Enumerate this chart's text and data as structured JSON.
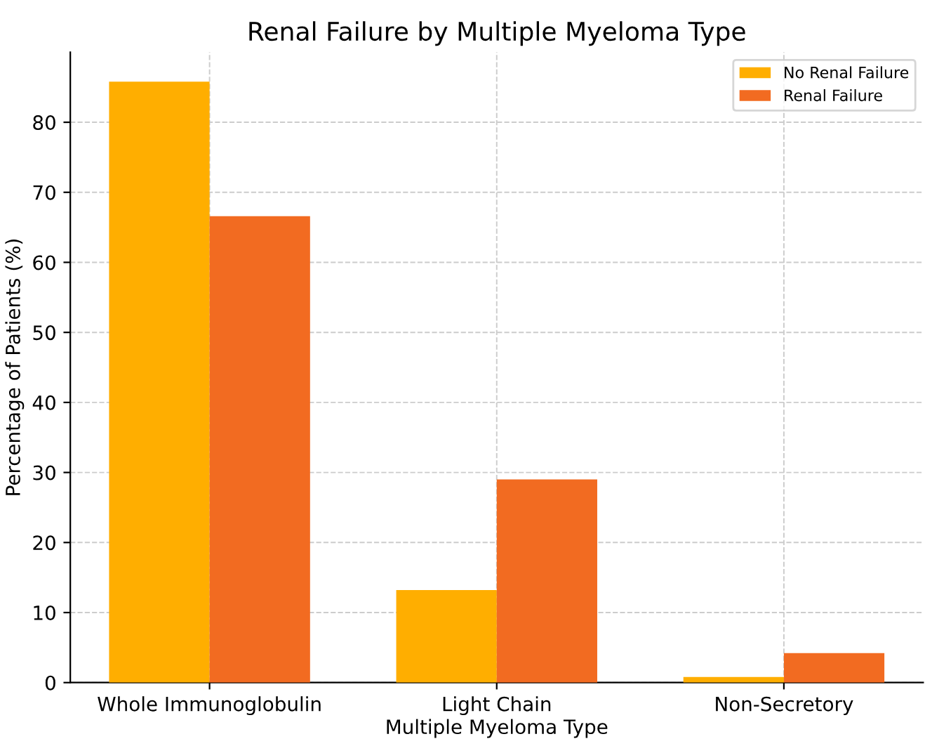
{
  "chart_data": {
    "type": "bar",
    "title": "Renal Failure by Multiple Myeloma Type",
    "xlabel": "Multiple Myeloma Type",
    "ylabel": "Percentage of Patients (%)",
    "categories": [
      "Whole Immunoglobulin",
      "Light Chain",
      "Non-Secretory"
    ],
    "series": [
      {
        "name": "No Renal Failure",
        "color": "#ffae00",
        "values": [
          85.8,
          13.2,
          0.8
        ]
      },
      {
        "name": "Renal Failure",
        "color": "#f26b21",
        "values": [
          66.6,
          29.0,
          4.2
        ]
      }
    ],
    "ylim": [
      0,
      90
    ],
    "yticks": [
      0,
      10,
      20,
      30,
      40,
      50,
      60,
      70,
      80
    ],
    "grid": true,
    "legend": "top right"
  }
}
